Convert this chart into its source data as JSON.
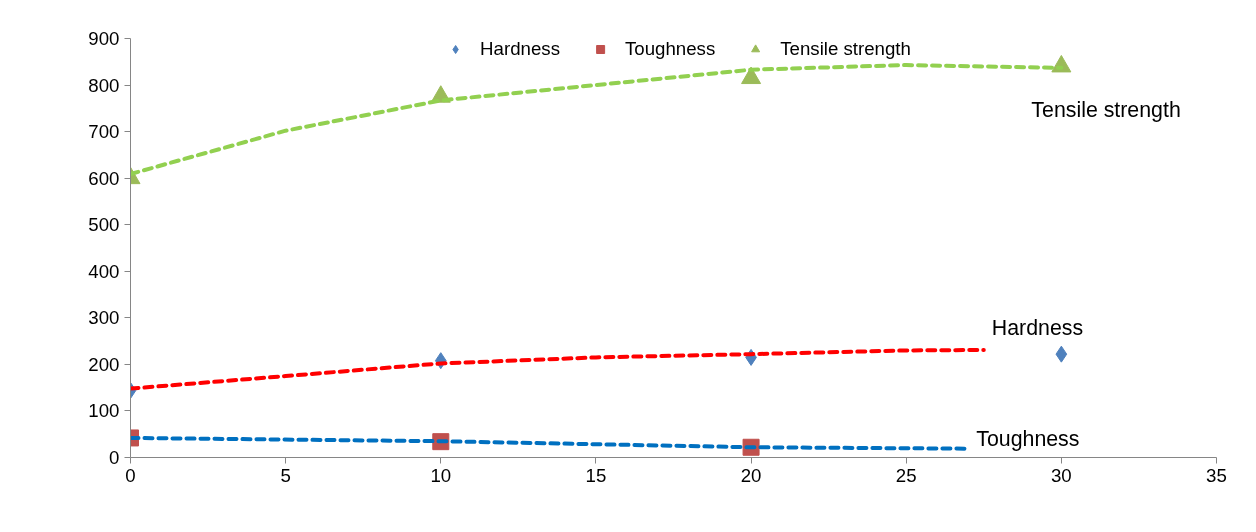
{
  "chart_data": {
    "type": "scatter",
    "x": [
      0,
      10,
      20,
      30
    ],
    "series": [
      {
        "name": "Hardness",
        "color": "#4f81bd",
        "marker": "diamond",
        "values": [
          144,
          208,
          215,
          222
        ]
      },
      {
        "name": "Toughness",
        "color": "#c0504d",
        "marker": "square",
        "values": [
          42,
          34,
          22,
          null
        ]
      },
      {
        "name": "Tensile strength",
        "color": "#9bbb59",
        "marker": "triangle",
        "values": [
          600,
          775,
          815,
          840
        ]
      },
      {
        "type": "line",
        "name": "Hardness",
        "color": "#ff0000",
        "line_style": "dashed",
        "x": [
          0,
          5,
          10,
          15,
          20,
          25,
          27.5
        ],
        "values": [
          148,
          175,
          202,
          215,
          222,
          230,
          231
        ]
      },
      {
        "type": "line",
        "name": "Toughness",
        "color": "#0070c0",
        "line_style": "dashed",
        "x": [
          0,
          10,
          20,
          27
        ],
        "values": [
          42,
          35,
          22,
          19
        ]
      },
      {
        "type": "line",
        "name": "Tensile strength",
        "color": "#92d050",
        "line_style": "dashed",
        "x": [
          0,
          5,
          10,
          15,
          20,
          25,
          30
        ],
        "values": [
          609,
          702,
          767,
          800,
          833,
          843,
          837
        ]
      }
    ],
    "xlim": [
      0,
      35
    ],
    "xticks": [
      0,
      5,
      10,
      15,
      20,
      25,
      30,
      35
    ],
    "ylim": [
      0,
      900
    ],
    "yticks": [
      0,
      100,
      200,
      300,
      400,
      500,
      600,
      700,
      800,
      900
    ],
    "grid": false,
    "legend": "top"
  }
}
